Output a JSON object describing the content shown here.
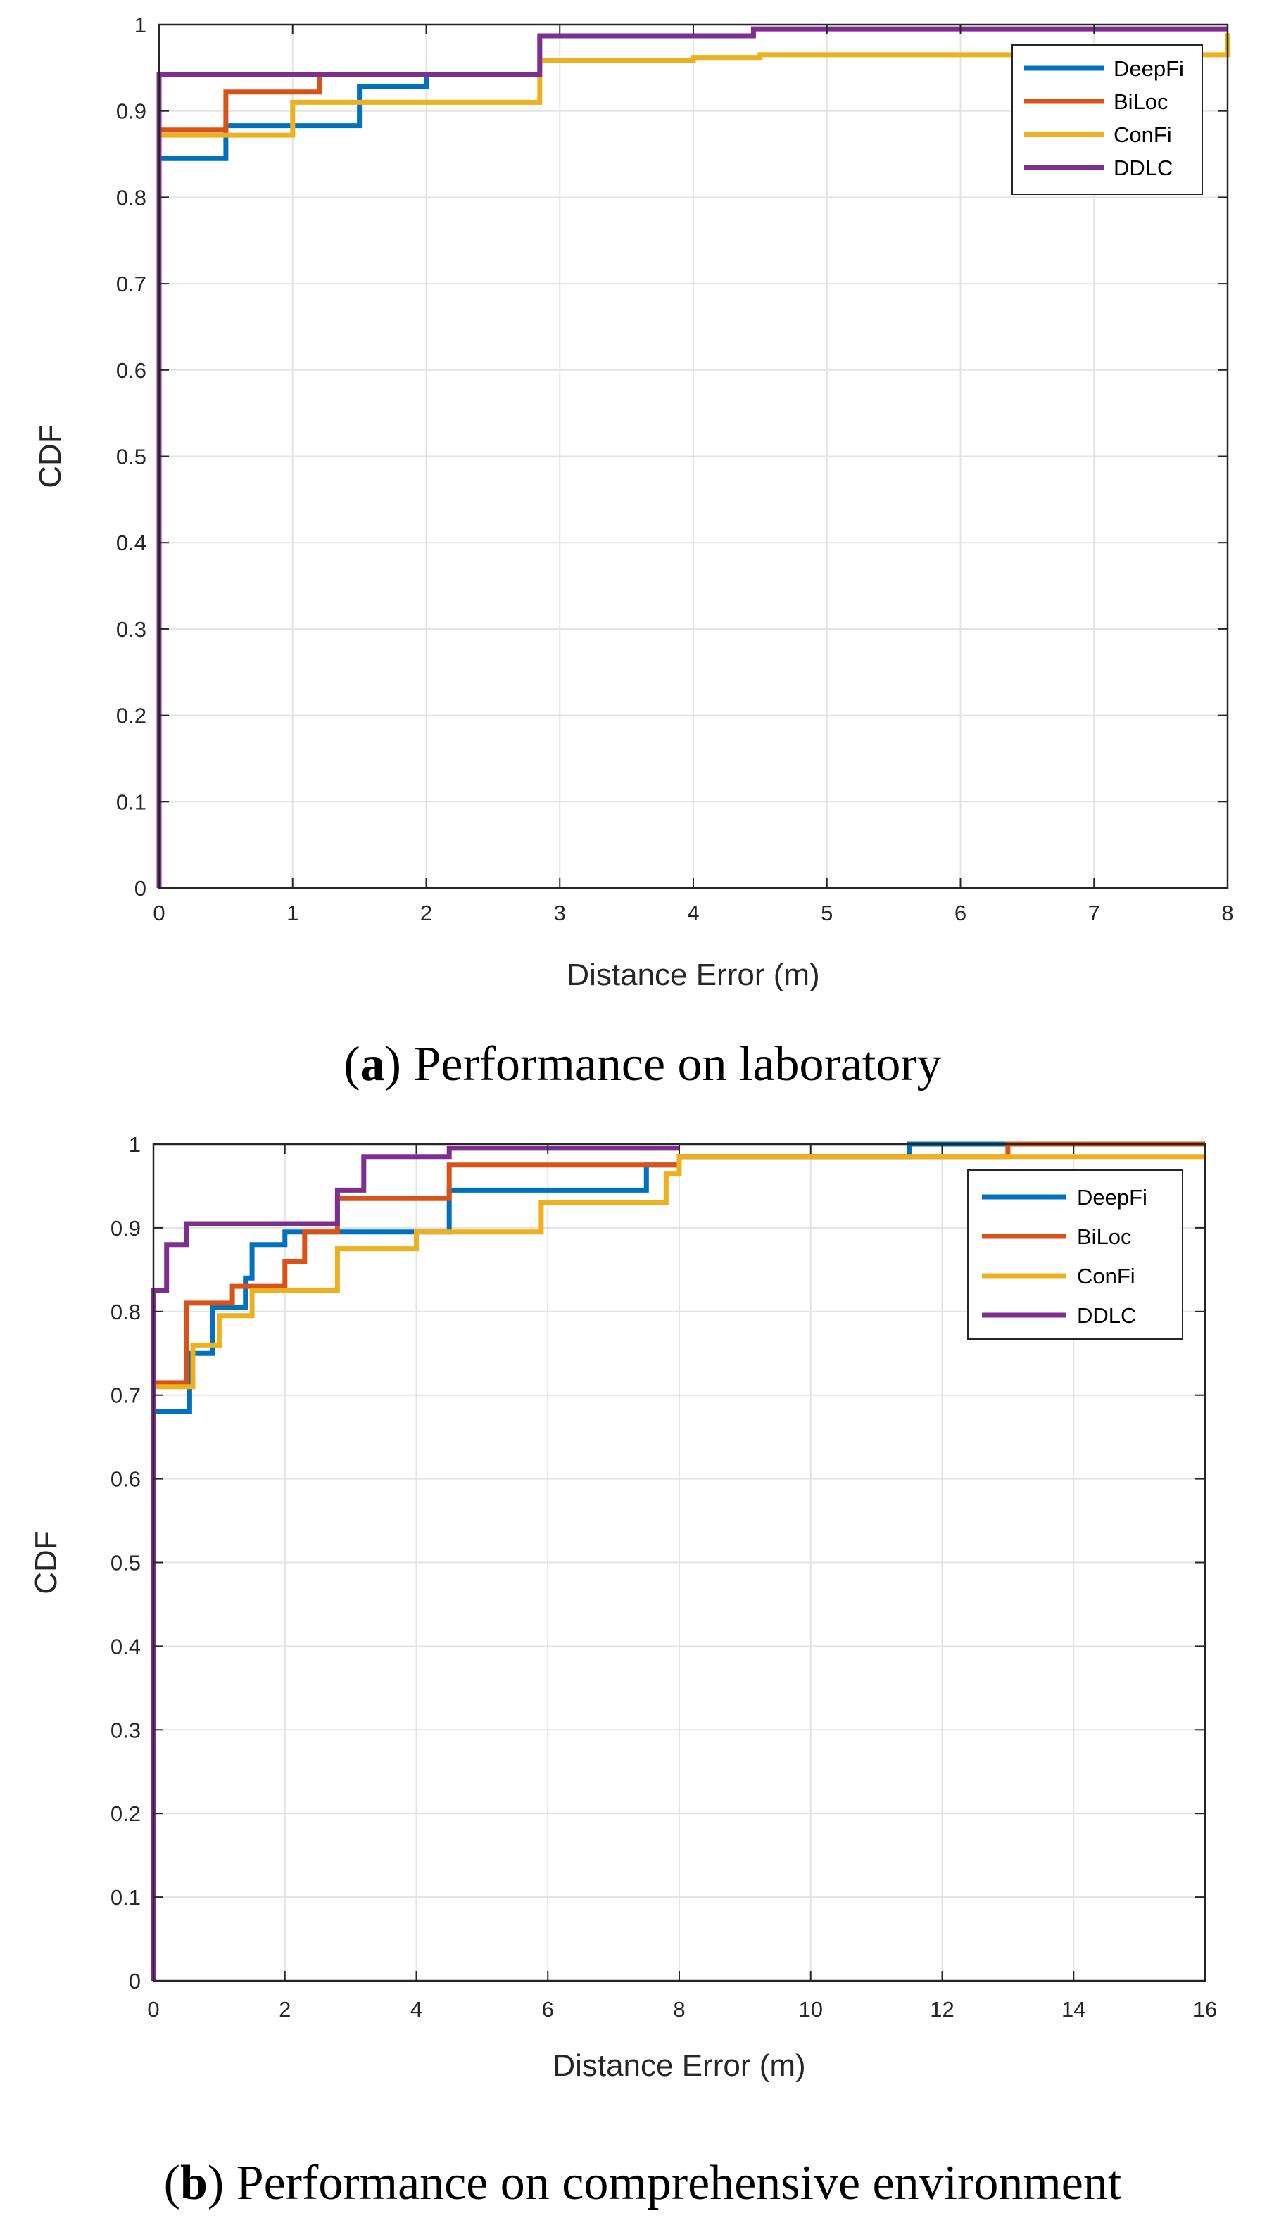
{
  "chart_data": [
    {
      "type": "line",
      "step": true,
      "caption": {
        "open": "(",
        "letter": "a",
        "close": ")",
        "text": " Performance on laboratory"
      },
      "xlabel": "Distance Error (m)",
      "ylabel": "CDF",
      "xlim": [
        0,
        8
      ],
      "ylim": [
        0,
        1
      ],
      "xticks": [
        0,
        1,
        2,
        3,
        4,
        5,
        6,
        7,
        8
      ],
      "yticks": [
        0,
        0.1,
        0.2,
        0.3,
        0.4,
        0.5,
        0.6,
        0.7,
        0.8,
        0.9,
        1
      ],
      "xtick_labels": [
        "0",
        "1",
        "2",
        "3",
        "4",
        "5",
        "6",
        "7",
        "8"
      ],
      "ytick_labels": [
        "0",
        "0.1",
        "0.2",
        "0.3",
        "0.4",
        "0.5",
        "0.6",
        "0.7",
        "0.8",
        "0.9",
        "1"
      ],
      "grid": true,
      "legend_position": "top-right",
      "series": [
        {
          "name": "DeepFi",
          "color": "#0072BD",
          "points": [
            [
              0,
              0.845
            ],
            [
              0.5,
              0.845
            ],
            [
              0.5,
              0.883
            ],
            [
              1.5,
              0.883
            ],
            [
              1.5,
              0.928
            ],
            [
              2,
              0.928
            ],
            [
              2,
              0.945
            ]
          ]
        },
        {
          "name": "BiLoc",
          "color": "#D95319",
          "points": [
            [
              0,
              0.878
            ],
            [
              0.5,
              0.878
            ],
            [
              0.5,
              0.922
            ],
            [
              1.2,
              0.922
            ],
            [
              1.2,
              0.94
            ]
          ]
        },
        {
          "name": "ConFi",
          "color": "#EDB120",
          "points": [
            [
              0,
              0.872
            ],
            [
              1,
              0.872
            ],
            [
              1,
              0.91
            ],
            [
              2.85,
              0.91
            ],
            [
              2.85,
              0.958
            ],
            [
              4,
              0.958
            ],
            [
              4,
              0.962
            ],
            [
              4.5,
              0.962
            ],
            [
              4.5,
              0.965
            ],
            [
              8,
              0.965
            ],
            [
              8,
              0.99
            ]
          ]
        },
        {
          "name": "DDLC",
          "color": "#7E2F8E",
          "points": [
            [
              0,
              0
            ],
            [
              0,
              0.942
            ],
            [
              2.85,
              0.942
            ],
            [
              2.85,
              0.987
            ],
            [
              4.45,
              0.987
            ],
            [
              4.45,
              0.995
            ],
            [
              8,
              0.995
            ]
          ]
        }
      ]
    },
    {
      "type": "line",
      "step": true,
      "caption": {
        "open": "(",
        "letter": "b",
        "close": ")",
        "text": " Performance on comprehensive environment"
      },
      "xlabel": "Distance Error (m)",
      "ylabel": "CDF",
      "xlim": [
        0,
        16
      ],
      "ylim": [
        0,
        1
      ],
      "xticks": [
        0,
        2,
        4,
        6,
        8,
        10,
        12,
        14,
        16
      ],
      "yticks": [
        0,
        0.1,
        0.2,
        0.3,
        0.4,
        0.5,
        0.6,
        0.7,
        0.8,
        0.9,
        1
      ],
      "xtick_labels": [
        "0",
        "2",
        "4",
        "6",
        "8",
        "10",
        "12",
        "14",
        "16"
      ],
      "ytick_labels": [
        "0",
        "0.1",
        "0.2",
        "0.3",
        "0.4",
        "0.5",
        "0.6",
        "0.7",
        "0.8",
        "0.9",
        "1"
      ],
      "grid": true,
      "legend_position": "top-right",
      "series": [
        {
          "name": "DeepFi",
          "color": "#0072BD",
          "points": [
            [
              0,
              0.68
            ],
            [
              0.55,
              0.68
            ],
            [
              0.55,
              0.75
            ],
            [
              0.9,
              0.75
            ],
            [
              0.9,
              0.805
            ],
            [
              1.4,
              0.805
            ],
            [
              1.4,
              0.84
            ],
            [
              1.5,
              0.84
            ],
            [
              1.5,
              0.88
            ],
            [
              2,
              0.88
            ],
            [
              2,
              0.895
            ],
            [
              4.5,
              0.895
            ],
            [
              4.5,
              0.945
            ],
            [
              7.5,
              0.945
            ],
            [
              7.5,
              0.975
            ],
            [
              8,
              0.975
            ],
            [
              8,
              0.985
            ],
            [
              11.5,
              0.985
            ],
            [
              11.5,
              1
            ],
            [
              13,
              1
            ]
          ]
        },
        {
          "name": "BiLoc",
          "color": "#D95319",
          "points": [
            [
              0,
              0.715
            ],
            [
              0.5,
              0.715
            ],
            [
              0.5,
              0.81
            ],
            [
              1.2,
              0.81
            ],
            [
              1.2,
              0.83
            ],
            [
              2,
              0.83
            ],
            [
              2,
              0.86
            ],
            [
              2.3,
              0.86
            ],
            [
              2.3,
              0.895
            ],
            [
              2.8,
              0.895
            ],
            [
              2.8,
              0.935
            ],
            [
              4.5,
              0.935
            ],
            [
              4.5,
              0.975
            ],
            [
              8,
              0.975
            ],
            [
              8,
              0.985
            ],
            [
              13,
              0.985
            ],
            [
              13,
              1
            ],
            [
              16,
              1
            ]
          ]
        },
        {
          "name": "ConFi",
          "color": "#EDB120",
          "points": [
            [
              0,
              0.71
            ],
            [
              0.6,
              0.71
            ],
            [
              0.6,
              0.76
            ],
            [
              1,
              0.76
            ],
            [
              1,
              0.795
            ],
            [
              1.5,
              0.795
            ],
            [
              1.5,
              0.825
            ],
            [
              2.8,
              0.825
            ],
            [
              2.8,
              0.875
            ],
            [
              4,
              0.875
            ],
            [
              4,
              0.895
            ],
            [
              5.9,
              0.895
            ],
            [
              5.9,
              0.93
            ],
            [
              7.8,
              0.93
            ],
            [
              7.8,
              0.965
            ],
            [
              8,
              0.965
            ],
            [
              8,
              0.985
            ],
            [
              16,
              0.985
            ]
          ]
        },
        {
          "name": "DDLC",
          "color": "#7E2F8E",
          "points": [
            [
              0,
              0
            ],
            [
              0,
              0.825
            ],
            [
              0.2,
              0.825
            ],
            [
              0.2,
              0.88
            ],
            [
              0.5,
              0.88
            ],
            [
              0.5,
              0.905
            ],
            [
              2.8,
              0.905
            ],
            [
              2.8,
              0.945
            ],
            [
              3.2,
              0.945
            ],
            [
              3.2,
              0.985
            ],
            [
              4.5,
              0.985
            ],
            [
              4.5,
              0.995
            ],
            [
              8,
              0.995
            ]
          ]
        }
      ]
    }
  ]
}
